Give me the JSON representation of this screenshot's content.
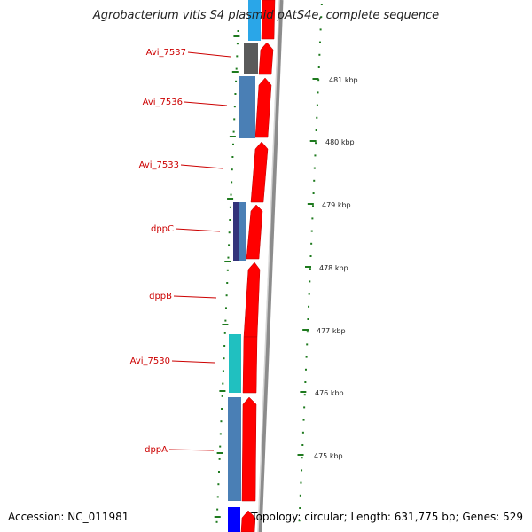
{
  "title": "Agrobacterium vitis S4 plasmid pAtS4e, complete sequence",
  "accession": "Accession: NC_011981",
  "topology": "Topology: circular; Length: 631,775 bp; Genes: 529",
  "colors": {
    "label_red": "#cc0000",
    "cds_red": "#ff0000",
    "backbone": "#8c8c8c",
    "tick_green": "#1e7a1e",
    "gene_cyan": "#20c0c0",
    "gene_steelblue": "#4a7fb5",
    "gene_darkgray": "#5a5a5a",
    "gene_skyblue": "#2aa6e8",
    "gene_navy": "#33337a",
    "gene_blue": "#0000ff"
  },
  "scale_labels": [
    "481 kbp",
    "480 kbp",
    "479 kbp",
    "478 kbp",
    "477 kbp",
    "476 kbp",
    "475 kbp"
  ],
  "gene_labels": [
    "Avi_7537",
    "Avi_7536",
    "Avi_7533",
    "dppC",
    "dppB",
    "Avi_7530",
    "dppA"
  ]
}
